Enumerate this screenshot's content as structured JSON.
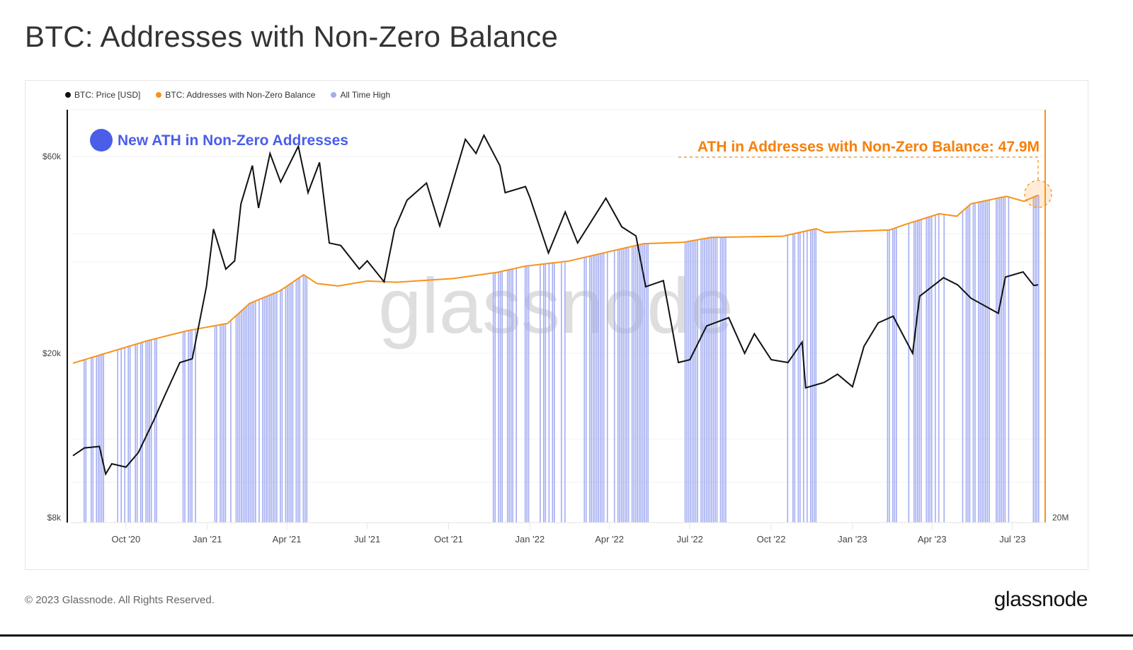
{
  "title": "BTC: Addresses with Non-Zero Balance",
  "legend": [
    {
      "label": "BTC: Price [USD]",
      "color": "#111111"
    },
    {
      "label": "BTC: Addresses with Non-Zero Balance",
      "color": "#f7931a"
    },
    {
      "label": "All Time High",
      "color": "#a3adf2"
    }
  ],
  "annotations": {
    "new_ath": {
      "text": "New ATH in Non-Zero Addresses",
      "color": "#4a5ee8"
    },
    "ath_value": {
      "text": "ATH in Addresses with Non-Zero Balance: 47.9M",
      "color": "#f77f0a"
    }
  },
  "watermark": "glassnode",
  "footer": {
    "copyright": "© 2023 Glassnode. All Rights Reserved.",
    "logo": "glassnode"
  },
  "chart_data": {
    "type": "line",
    "title": "BTC: Addresses with Non-Zero Balance",
    "x_range": [
      "2020-08-02",
      "2023-07-30"
    ],
    "x_ticks": [
      "Oct '20",
      "Jan '21",
      "Apr '21",
      "Jul '21",
      "Oct '21",
      "Jan '22",
      "Apr '22",
      "Jul '22",
      "Oct '22",
      "Jan '23",
      "Apr '23",
      "Jul '23"
    ],
    "x_tick_dates": [
      "2020-10-01",
      "2021-01-01",
      "2021-04-01",
      "2021-07-01",
      "2021-10-01",
      "2022-01-01",
      "2022-04-01",
      "2022-07-01",
      "2022-10-01",
      "2023-01-01",
      "2023-04-01",
      "2023-07-01"
    ],
    "y_left": {
      "scale": "log",
      "range": [
        8000,
        80000
      ],
      "ticks": [
        8000,
        20000,
        60000
      ],
      "tick_labels": [
        "$8k",
        "$20k",
        "$60k"
      ]
    },
    "y_right": {
      "scale": "linear",
      "range_millions": [
        35,
        49.5
      ],
      "tick_labels": [
        "20M"
      ]
    },
    "grid": true,
    "legend_placement": "top-left",
    "series": [
      {
        "name": "BTC: Price [USD]",
        "color": "#111111",
        "axis": "left",
        "points": [
          [
            "2020-08-02",
            11300
          ],
          [
            "2020-08-15",
            11800
          ],
          [
            "2020-09-01",
            11900
          ],
          [
            "2020-09-08",
            10200
          ],
          [
            "2020-09-15",
            10800
          ],
          [
            "2020-10-01",
            10600
          ],
          [
            "2020-10-15",
            11500
          ],
          [
            "2020-11-01",
            13700
          ],
          [
            "2020-11-15",
            16000
          ],
          [
            "2020-12-01",
            19000
          ],
          [
            "2020-12-15",
            19400
          ],
          [
            "2020-12-31",
            29000
          ],
          [
            "2021-01-08",
            40000
          ],
          [
            "2021-01-22",
            32000
          ],
          [
            "2021-02-01",
            33500
          ],
          [
            "2021-02-08",
            46000
          ],
          [
            "2021-02-21",
            57000
          ],
          [
            "2021-02-28",
            45000
          ],
          [
            "2021-03-13",
            61000
          ],
          [
            "2021-03-25",
            52000
          ],
          [
            "2021-04-14",
            63500
          ],
          [
            "2021-04-25",
            49000
          ],
          [
            "2021-05-08",
            58000
          ],
          [
            "2021-05-19",
            37000
          ],
          [
            "2021-06-01",
            36500
          ],
          [
            "2021-06-22",
            32000
          ],
          [
            "2021-07-01",
            33500
          ],
          [
            "2021-07-20",
            29800
          ],
          [
            "2021-08-01",
            40000
          ],
          [
            "2021-08-15",
            47000
          ],
          [
            "2021-09-06",
            51700
          ],
          [
            "2021-09-21",
            40700
          ],
          [
            "2021-10-01",
            48000
          ],
          [
            "2021-10-20",
            66000
          ],
          [
            "2021-11-01",
            61000
          ],
          [
            "2021-11-10",
            67500
          ],
          [
            "2021-11-28",
            57000
          ],
          [
            "2021-12-04",
            49000
          ],
          [
            "2021-12-27",
            50700
          ],
          [
            "2022-01-01",
            47700
          ],
          [
            "2022-01-22",
            35000
          ],
          [
            "2022-02-10",
            44000
          ],
          [
            "2022-02-24",
            37000
          ],
          [
            "2022-03-28",
            47500
          ],
          [
            "2022-04-15",
            40500
          ],
          [
            "2022-05-01",
            38500
          ],
          [
            "2022-05-12",
            29000
          ],
          [
            "2022-06-01",
            30000
          ],
          [
            "2022-06-18",
            19000
          ],
          [
            "2022-07-01",
            19300
          ],
          [
            "2022-07-20",
            23300
          ],
          [
            "2022-08-14",
            24400
          ],
          [
            "2022-09-01",
            20000
          ],
          [
            "2022-09-12",
            22300
          ],
          [
            "2022-10-01",
            19300
          ],
          [
            "2022-10-20",
            19000
          ],
          [
            "2022-11-05",
            21300
          ],
          [
            "2022-11-09",
            16500
          ],
          [
            "2022-11-30",
            17000
          ],
          [
            "2022-12-15",
            17800
          ],
          [
            "2023-01-01",
            16600
          ],
          [
            "2023-01-14",
            20800
          ],
          [
            "2023-01-30",
            23700
          ],
          [
            "2023-02-16",
            24600
          ],
          [
            "2023-03-10",
            20000
          ],
          [
            "2023-03-18",
            27500
          ],
          [
            "2023-04-14",
            30500
          ],
          [
            "2023-04-30",
            29300
          ],
          [
            "2023-05-15",
            27200
          ],
          [
            "2023-06-15",
            25000
          ],
          [
            "2023-06-23",
            30600
          ],
          [
            "2023-07-13",
            31500
          ],
          [
            "2023-07-25",
            29200
          ],
          [
            "2023-07-30",
            29300
          ]
        ]
      },
      {
        "name": "BTC: Addresses with Non-Zero Balance",
        "color": "#f7931a",
        "axis": "right",
        "unit": "M",
        "points": [
          [
            "2020-08-02",
            41.2
          ],
          [
            "2020-10-25",
            42.1
          ],
          [
            "2020-12-09",
            42.5
          ],
          [
            "2021-01-24",
            42.8
          ],
          [
            "2021-02-18",
            43.6
          ],
          [
            "2021-03-24",
            44.1
          ],
          [
            "2021-04-20",
            44.75
          ],
          [
            "2021-05-05",
            44.4
          ],
          [
            "2021-05-29",
            44.3
          ],
          [
            "2021-07-01",
            44.5
          ],
          [
            "2021-08-03",
            44.45
          ],
          [
            "2021-10-07",
            44.6
          ],
          [
            "2021-11-25",
            44.85
          ],
          [
            "2021-12-27",
            45.1
          ],
          [
            "2022-02-14",
            45.3
          ],
          [
            "2022-04-03",
            45.7
          ],
          [
            "2022-05-10",
            46.0
          ],
          [
            "2022-06-23",
            46.05
          ],
          [
            "2022-07-25",
            46.25
          ],
          [
            "2022-10-14",
            46.3
          ],
          [
            "2022-11-21",
            46.6
          ],
          [
            "2022-12-01",
            46.45
          ],
          [
            "2023-02-12",
            46.55
          ],
          [
            "2023-02-28",
            46.75
          ],
          [
            "2023-04-09",
            47.2
          ],
          [
            "2023-04-29",
            47.1
          ],
          [
            "2023-05-15",
            47.6
          ],
          [
            "2023-06-24",
            47.9
          ],
          [
            "2023-07-14",
            47.7
          ],
          [
            "2023-07-30",
            47.95
          ]
        ]
      }
    ],
    "ath_periods": {
      "name": "All Time High",
      "color": "#a3adf2",
      "ranges": [
        [
          "2020-08-14",
          "2020-09-05"
        ],
        [
          "2020-09-21",
          "2020-11-04"
        ],
        [
          "2020-12-02",
          "2020-12-18"
        ],
        [
          "2021-01-07",
          "2021-04-23"
        ],
        [
          "2021-11-20",
          "2021-12-31"
        ],
        [
          "2022-01-10",
          "2022-02-09"
        ],
        [
          "2022-03-01",
          "2022-05-14"
        ],
        [
          "2022-06-25",
          "2022-08-10"
        ],
        [
          "2022-10-17",
          "2022-11-21"
        ],
        [
          "2023-02-09",
          "2023-02-19"
        ],
        [
          "2023-03-05",
          "2023-04-14"
        ],
        [
          "2023-05-05",
          "2023-06-26"
        ],
        [
          "2023-07-24",
          "2023-07-30"
        ]
      ]
    },
    "ath_value": 47.9
  }
}
